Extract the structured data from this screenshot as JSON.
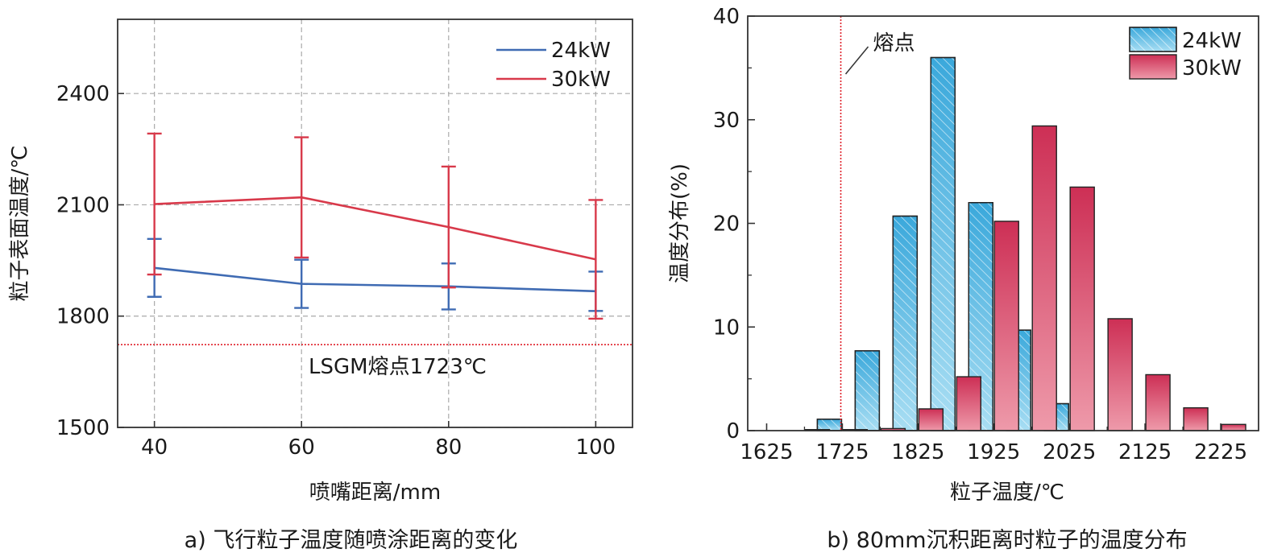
{
  "chart_data": [
    {
      "type": "line",
      "title": "",
      "caption": "a) 飞行粒子温度随喷涂距离的变化",
      "xlabel": "喷嘴距离/mm",
      "ylabel": "粒子表面温度/℃",
      "x": [
        40,
        60,
        80,
        100
      ],
      "xlim": [
        35,
        105
      ],
      "ylim": [
        1500,
        2600
      ],
      "xticks": [
        "40",
        "60",
        "80",
        "100"
      ],
      "yticks": [
        "1500",
        "1800",
        "2100",
        "2400"
      ],
      "grid": true,
      "legend_position": "top-right",
      "series": [
        {
          "name": "24kW",
          "color": "#3f6bb3",
          "values": [
            1930,
            1887,
            1880,
            1867
          ],
          "err": [
            78,
            65,
            62,
            53
          ]
        },
        {
          "name": "30kW",
          "color": "#d8394a",
          "values": [
            2102,
            2120,
            2040,
            1953
          ],
          "err": [
            190,
            162,
            163,
            160
          ]
        }
      ],
      "reference_line": {
        "y": 1723,
        "label": "LSGM熔点1723℃",
        "color": "#e0202a"
      }
    },
    {
      "type": "bar",
      "title": "",
      "caption": "b) 80mm沉积距离时粒子的温度分布",
      "xlabel": "粒子温度/℃",
      "ylabel": "温度分布(%)",
      "xlim": [
        1600,
        2275
      ],
      "ylim": [
        0,
        40
      ],
      "xticks": [
        "1625",
        "1725",
        "1825",
        "1925",
        "2025",
        "2125",
        "2225"
      ],
      "yticks": [
        "0",
        "10",
        "20",
        "30",
        "40"
      ],
      "bin_width": 50,
      "legend_position": "top-right",
      "series": [
        {
          "name": "24kW",
          "color": "#4bb4e2",
          "pattern": "hatched",
          "x": [
            1675,
            1725,
            1775,
            1825,
            1875,
            1925,
            1975,
            2025,
            2075,
            2125
          ],
          "values": [
            0,
            1.1,
            7.7,
            20.7,
            36,
            22,
            9.7,
            2.6,
            0,
            0
          ]
        },
        {
          "name": "30kW",
          "color": "#d0395a",
          "x": [
            1675,
            1725,
            1775,
            1825,
            1875,
            1925,
            1975,
            2025,
            2075,
            2125,
            2175,
            2225
          ],
          "values": [
            0.1,
            0.1,
            0.2,
            2.1,
            5.2,
            20.2,
            29.4,
            23.5,
            10.8,
            5.4,
            2.2,
            0.6
          ]
        }
      ],
      "reference_line": {
        "x": 1723,
        "label": "熔点",
        "color": "#e0202a"
      }
    }
  ]
}
